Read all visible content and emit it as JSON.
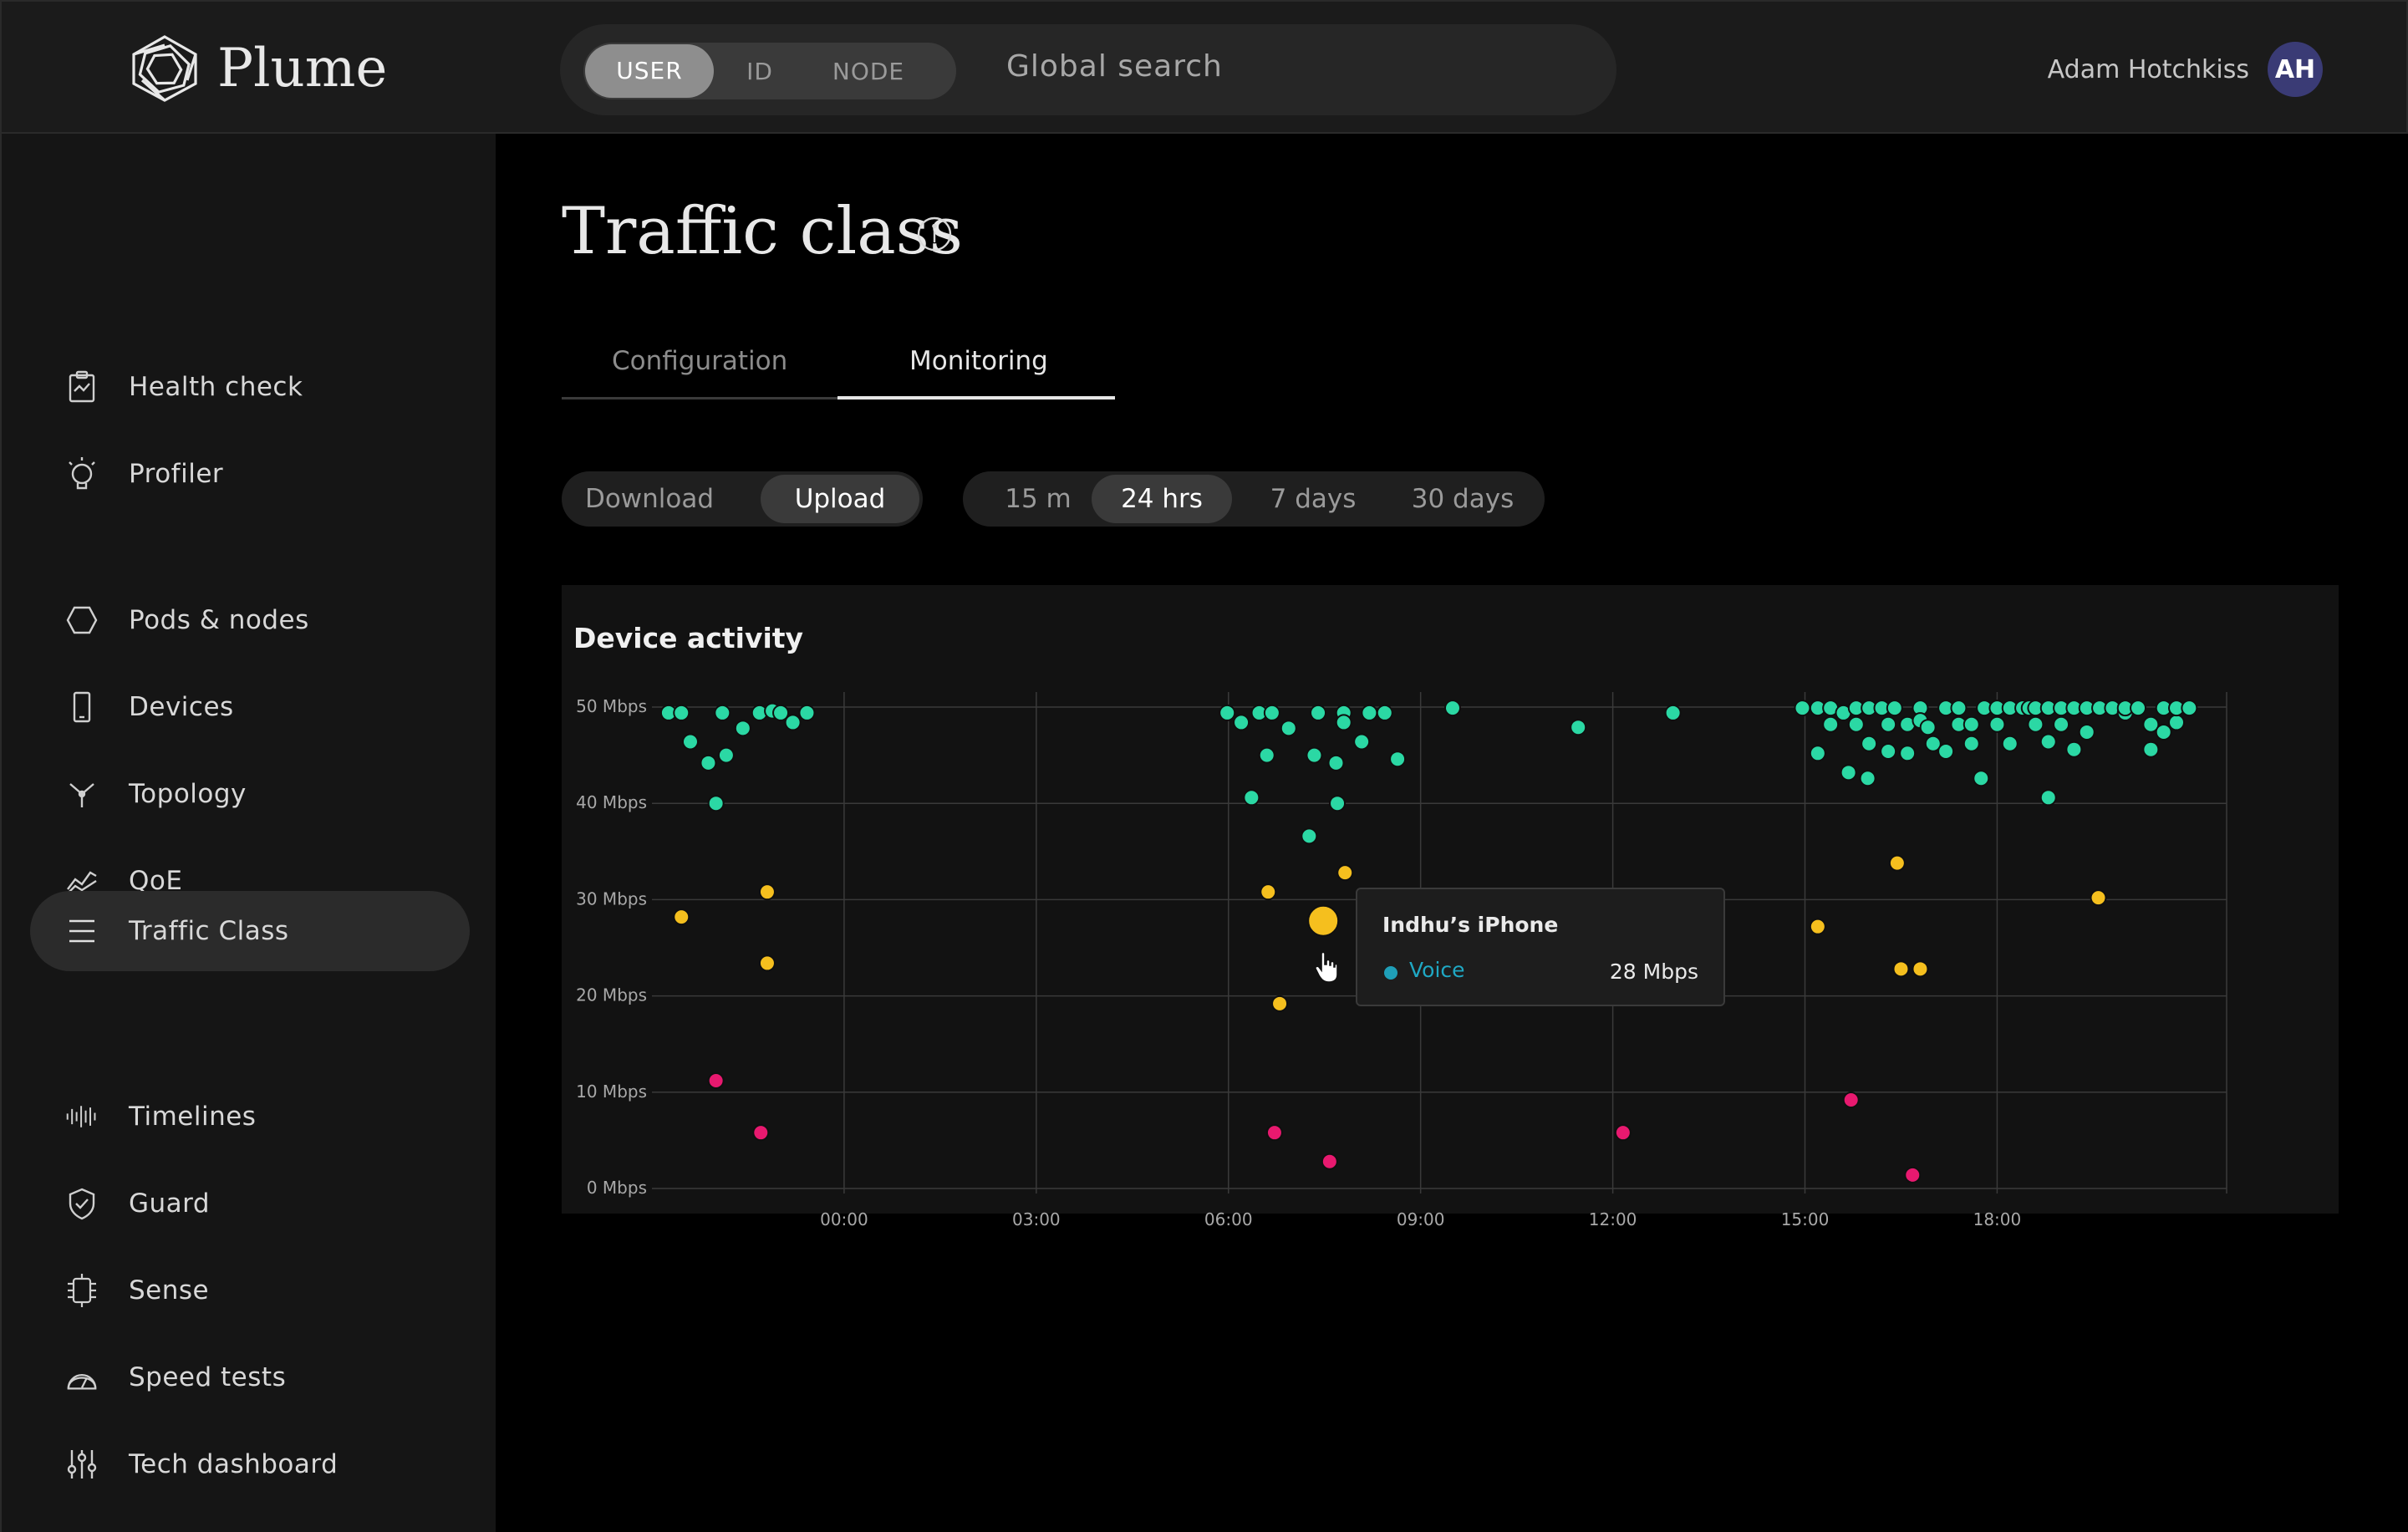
{
  "header": {
    "logo_text": "Plume",
    "search_modes": [
      "USER",
      "ID",
      "NODE"
    ],
    "search_placeholder": "Global search",
    "user_name": "Adam Hotchkiss",
    "user_initials": "AH"
  },
  "sidebar": {
    "items": [
      {
        "label": "Health check",
        "icon": "clipboard-icon"
      },
      {
        "label": "Profiler",
        "icon": "lightbulb-icon"
      },
      {
        "label": "Pods & nodes",
        "icon": "hexagon-icon"
      },
      {
        "label": "Devices",
        "icon": "phone-icon"
      },
      {
        "label": "Topology",
        "icon": "topology-icon"
      },
      {
        "label": "QoE",
        "icon": "qoe-icon"
      },
      {
        "label": "Traffic Class",
        "icon": "list-icon",
        "active": true
      },
      {
        "label": "Timelines",
        "icon": "waveform-icon"
      },
      {
        "label": "Guard",
        "icon": "shield-icon"
      },
      {
        "label": "Sense",
        "icon": "sense-icon"
      },
      {
        "label": "Speed tests",
        "icon": "gauge-icon"
      },
      {
        "label": "Tech dashboard",
        "icon": "sliders-icon"
      }
    ]
  },
  "main": {
    "title": "Traffic class",
    "tabs": [
      "Configuration",
      "Monitoring"
    ],
    "active_tab": "Monitoring",
    "direction_toggle": [
      "Download",
      "Upload"
    ],
    "active_direction": "Upload",
    "time_ranges": [
      "15 m",
      "24 hrs",
      "7 days",
      "30 days"
    ],
    "active_time_range": "24 hrs"
  },
  "chart_data": {
    "type": "scatter",
    "title": "Device activity",
    "xlabel": "",
    "ylabel": "",
    "y_ticks": [
      "0 Mbps",
      "10 Mbps",
      "20 Mbps",
      "30 Mbps",
      "40 Mbps",
      "50 Mbps"
    ],
    "x_ticks": [
      "00:00",
      "03:00",
      "06:00",
      "09:00",
      "12:00",
      "15:00",
      "18:00"
    ],
    "ylim": [
      0,
      50
    ],
    "xlim_hours": [
      -3.0,
      21.4
    ],
    "grid": true,
    "colors": {
      "high": "#2bd8a4",
      "mid": "#f5bf1e",
      "low": "#e8196f"
    },
    "series": [
      {
        "color_key": "high",
        "points": [
          [
            -2.74,
            49.4
          ],
          [
            -2.54,
            49.4
          ],
          [
            -2.4,
            46.4
          ],
          [
            -2.12,
            44.2
          ],
          [
            -2.0,
            40.0
          ],
          [
            -1.9,
            49.4
          ],
          [
            -1.84,
            45.0
          ],
          [
            -1.58,
            47.8
          ],
          [
            -1.32,
            49.4
          ],
          [
            -1.12,
            49.6
          ],
          [
            -0.99,
            49.4
          ],
          [
            -0.8,
            48.4
          ],
          [
            -0.58,
            49.4
          ],
          [
            5.98,
            49.4
          ],
          [
            6.2,
            48.4
          ],
          [
            6.36,
            40.6
          ],
          [
            6.48,
            49.4
          ],
          [
            6.6,
            45.0
          ],
          [
            6.68,
            49.4
          ],
          [
            6.94,
            47.8
          ],
          [
            7.26,
            36.6
          ],
          [
            7.34,
            45.0
          ],
          [
            7.4,
            49.4
          ],
          [
            7.68,
            44.2
          ],
          [
            7.7,
            40.0
          ],
          [
            7.8,
            49.4
          ],
          [
            7.8,
            48.4
          ],
          [
            8.08,
            46.4
          ],
          [
            8.2,
            49.4
          ],
          [
            8.44,
            49.4
          ],
          [
            8.64,
            44.6
          ],
          [
            9.5,
            49.9
          ],
          [
            11.46,
            47.9
          ],
          [
            12.94,
            49.4
          ],
          [
            14.96,
            49.9
          ],
          [
            15.2,
            45.2
          ],
          [
            15.2,
            49.9
          ],
          [
            15.4,
            48.2
          ],
          [
            15.4,
            49.9
          ],
          [
            15.6,
            49.4
          ],
          [
            15.68,
            43.2
          ],
          [
            15.8,
            48.2
          ],
          [
            15.8,
            49.9
          ],
          [
            15.98,
            42.6
          ],
          [
            16.0,
            46.2
          ],
          [
            16.0,
            49.9
          ],
          [
            16.2,
            49.9
          ],
          [
            16.3,
            48.2
          ],
          [
            16.3,
            45.4
          ],
          [
            16.4,
            49.9
          ],
          [
            16.6,
            48.2
          ],
          [
            16.6,
            45.2
          ],
          [
            16.8,
            49.9
          ],
          [
            16.8,
            48.6
          ],
          [
            16.92,
            47.9
          ],
          [
            17.0,
            46.2
          ],
          [
            17.2,
            49.9
          ],
          [
            17.2,
            45.4
          ],
          [
            17.4,
            48.2
          ],
          [
            17.4,
            49.9
          ],
          [
            17.6,
            48.2
          ],
          [
            17.6,
            46.2
          ],
          [
            17.75,
            42.6
          ],
          [
            17.8,
            49.9
          ],
          [
            18.0,
            48.2
          ],
          [
            18.0,
            49.9
          ],
          [
            18.2,
            49.9
          ],
          [
            18.2,
            46.2
          ],
          [
            18.4,
            49.9
          ],
          [
            18.5,
            49.9
          ],
          [
            18.6,
            48.2
          ],
          [
            18.6,
            49.9
          ],
          [
            18.8,
            49.9
          ],
          [
            18.8,
            46.4
          ],
          [
            18.8,
            40.6
          ],
          [
            19.0,
            48.2
          ],
          [
            19.0,
            49.9
          ],
          [
            19.2,
            45.6
          ],
          [
            19.2,
            49.9
          ],
          [
            19.4,
            47.4
          ],
          [
            19.4,
            49.9
          ],
          [
            19.6,
            49.9
          ],
          [
            19.8,
            49.9
          ],
          [
            20.0,
            49.4
          ],
          [
            20.0,
            49.9
          ],
          [
            20.2,
            49.9
          ],
          [
            20.4,
            48.2
          ],
          [
            20.4,
            45.6
          ],
          [
            20.6,
            47.4
          ],
          [
            20.6,
            49.9
          ],
          [
            20.8,
            48.4
          ],
          [
            20.8,
            49.9
          ],
          [
            21.0,
            49.9
          ]
        ]
      },
      {
        "color_key": "mid",
        "points": [
          [
            -2.54,
            28.2
          ],
          [
            -1.2,
            30.8
          ],
          [
            -1.2,
            23.4
          ],
          [
            6.62,
            30.8
          ],
          [
            6.8,
            19.2
          ],
          [
            7.82,
            32.8
          ],
          [
            7.48,
            27.8
          ],
          [
            15.2,
            27.2
          ],
          [
            16.44,
            33.8
          ],
          [
            16.5,
            22.8
          ],
          [
            16.8,
            22.8
          ],
          [
            19.58,
            30.2
          ]
        ]
      },
      {
        "color_key": "low",
        "points": [
          [
            -2.0,
            11.2
          ],
          [
            -1.3,
            5.8
          ],
          [
            6.72,
            5.8
          ],
          [
            7.58,
            2.8
          ],
          [
            12.16,
            5.8
          ],
          [
            15.72,
            9.2
          ],
          [
            16.68,
            1.4
          ]
        ]
      }
    ],
    "highlight": {
      "x": 7.48,
      "y": 27.8,
      "color_key": "mid"
    },
    "tooltip": {
      "device": "Indhu’s iPhone",
      "series": "Voice",
      "value": "28 Mbps",
      "series_color": "#1f9fb8"
    }
  }
}
